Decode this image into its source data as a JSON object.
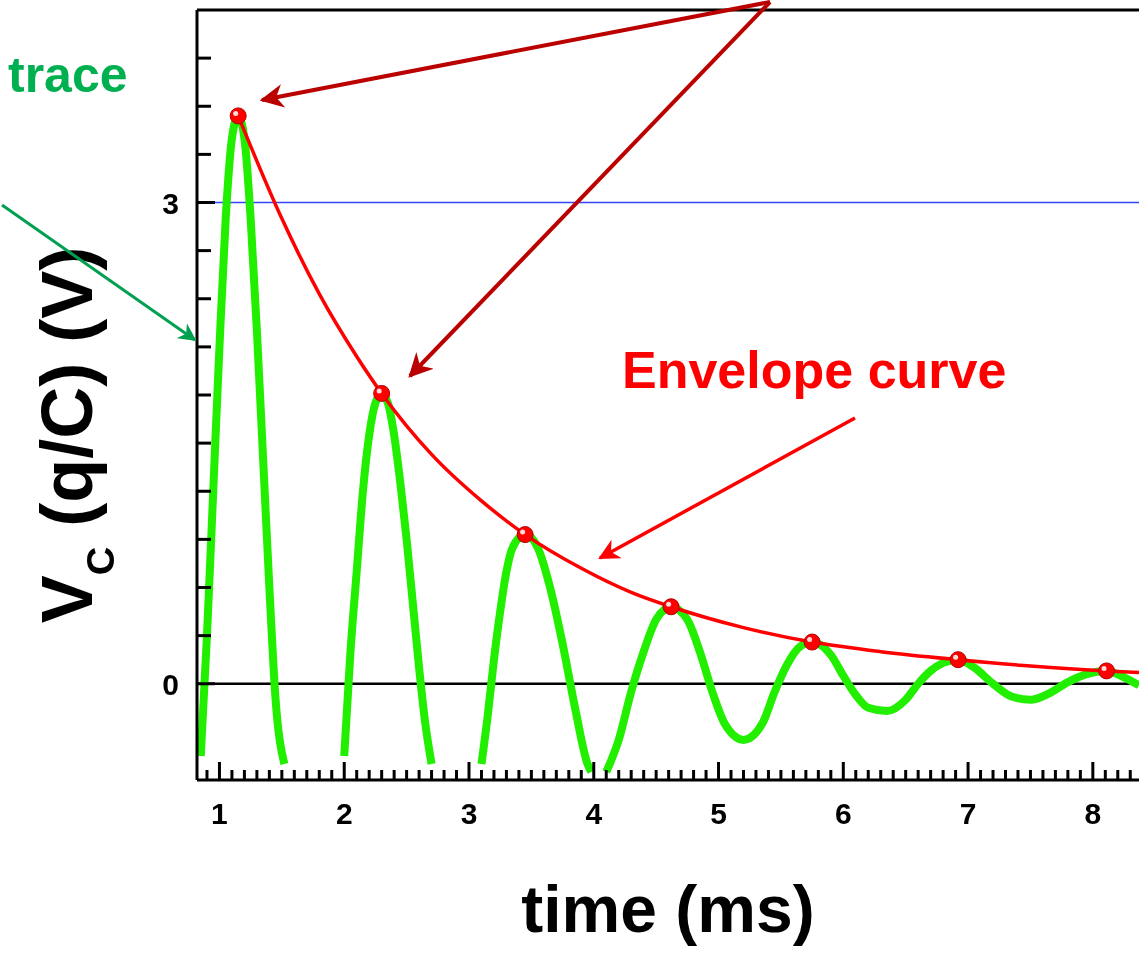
{
  "chart_data": {
    "type": "line",
    "xlabel": "time (ms)",
    "ylabel": "V$_{C}$ (q/C) (V)",
    "xlim": [
      0.82,
      8.37
    ],
    "ylim": [
      -0.6,
      4.2
    ],
    "xticks": [
      {
        "value": 0.9,
        "label": null
      },
      1,
      {
        "value": 1.1,
        "label": null
      },
      {
        "value": 1.2,
        "label": null
      },
      {
        "value": 1.3,
        "label": null
      },
      {
        "value": 1.4,
        "label": null
      },
      {
        "value": 1.5,
        "label": null
      },
      {
        "value": 1.6,
        "label": null
      },
      {
        "value": 1.7,
        "label": null
      },
      {
        "value": 1.8,
        "label": null
      },
      {
        "value": 1.9,
        "label": null
      },
      2,
      {
        "value": 2.1,
        "label": null
      },
      {
        "value": 2.2,
        "label": null
      },
      {
        "value": 2.3,
        "label": null
      },
      {
        "value": 2.4,
        "label": null
      },
      {
        "value": 2.5,
        "label": null
      },
      {
        "value": 2.6,
        "label": null
      },
      {
        "value": 2.7,
        "label": null
      },
      {
        "value": 2.8,
        "label": null
      },
      {
        "value": 2.9,
        "label": null
      },
      3,
      {
        "value": 3.1,
        "label": null
      },
      {
        "value": 3.2,
        "label": null
      },
      {
        "value": 3.3,
        "label": null
      },
      {
        "value": 3.4,
        "label": null
      },
      {
        "value": 3.5,
        "label": null
      },
      {
        "value": 3.6,
        "label": null
      },
      {
        "value": 3.7,
        "label": null
      },
      {
        "value": 3.8,
        "label": null
      },
      {
        "value": 3.9,
        "label": null
      },
      4,
      {
        "value": 4.1,
        "label": null
      },
      {
        "value": 4.2,
        "label": null
      },
      {
        "value": 4.3,
        "label": null
      },
      {
        "value": 4.4,
        "label": null
      },
      {
        "value": 4.5,
        "label": null
      },
      {
        "value": 4.6,
        "label": null
      },
      {
        "value": 4.7,
        "label": null
      },
      {
        "value": 4.8,
        "label": null
      },
      {
        "value": 4.9,
        "label": null
      },
      5,
      {
        "value": 5.1,
        "label": null
      },
      {
        "value": 5.2,
        "label": null
      },
      {
        "value": 5.3,
        "label": null
      },
      {
        "value": 5.4,
        "label": null
      },
      {
        "value": 5.5,
        "label": null
      },
      {
        "value": 5.6,
        "label": null
      },
      {
        "value": 5.7,
        "label": null
      },
      {
        "value": 5.8,
        "label": null
      },
      {
        "value": 5.9,
        "label": null
      },
      6,
      {
        "value": 6.1,
        "label": null
      },
      {
        "value": 6.2,
        "label": null
      },
      {
        "value": 6.3,
        "label": null
      },
      {
        "value": 6.4,
        "label": null
      },
      {
        "value": 6.5,
        "label": null
      },
      {
        "value": 6.6,
        "label": null
      },
      {
        "value": 6.7,
        "label": null
      },
      {
        "value": 6.8,
        "label": null
      },
      {
        "value": 6.9,
        "label": null
      },
      7,
      {
        "value": 7.1,
        "label": null
      },
      {
        "value": 7.2,
        "label": null
      },
      {
        "value": 7.3,
        "label": null
      },
      {
        "value": 7.4,
        "label": null
      },
      {
        "value": 7.5,
        "label": null
      },
      {
        "value": 7.6,
        "label": null
      },
      {
        "value": 7.7,
        "label": null
      },
      {
        "value": 7.8,
        "label": null
      },
      {
        "value": 7.9,
        "label": null
      },
      8,
      {
        "value": 8.1,
        "label": null
      },
      {
        "value": 8.2,
        "label": null
      },
      {
        "value": 8.3,
        "label": null
      }
    ],
    "yticks": [
      0,
      {
        "value": 0.3,
        "label": null
      },
      {
        "value": 0.6,
        "label": null
      },
      {
        "value": 0.9,
        "label": null
      },
      {
        "value": 1.2,
        "label": null
      },
      {
        "value": 1.5,
        "label": null
      },
      {
        "value": 1.8,
        "label": null
      },
      {
        "value": 2.1,
        "label": null
      },
      {
        "value": 2.4,
        "label": null
      },
      {
        "value": 2.7,
        "label": null
      },
      3,
      {
        "value": 3.3,
        "label": null
      },
      {
        "value": 3.6,
        "label": null
      },
      {
        "value": 3.9,
        "label": null
      }
    ],
    "series": [
      {
        "type": "line",
        "color": "#22ee00",
        "x": [
          0.85,
          0.9,
          0.95,
          1.0,
          1.05,
          1.1,
          1.15,
          1.2,
          1.25,
          1.3,
          1.35,
          1.4,
          1.45,
          1.52,
          1.75,
          2.0,
          2.05,
          2.1,
          2.15,
          2.2,
          2.25,
          2.3,
          2.35,
          2.4,
          2.45,
          2.5,
          2.55,
          2.6,
          2.65,
          2.7,
          2.9,
          3.1,
          3.15,
          3.2,
          3.25,
          3.3,
          3.35,
          3.45,
          3.55,
          3.65,
          3.75,
          3.85,
          3.95,
          3.98,
          4.04,
          4.1,
          4.2,
          4.3,
          4.4,
          4.5,
          4.62,
          4.75,
          4.85,
          4.95,
          5.05,
          5.2,
          5.35,
          5.45,
          5.55,
          5.65,
          5.75,
          5.9,
          6.0,
          6.1,
          6.2,
          6.35,
          6.5,
          6.6,
          6.7,
          6.8,
          6.92,
          7.05,
          7.2,
          7.35,
          7.5,
          7.65,
          7.8,
          7.95,
          8.11,
          8.25,
          8.37
        ],
        "values": [
          -0.45,
          0.3,
          1.2,
          2.1,
          2.9,
          3.4,
          3.54,
          3.4,
          2.9,
          2.2,
          1.4,
          0.6,
          -0.1,
          -0.5,
          null,
          -0.45,
          0.2,
          0.7,
          1.2,
          1.55,
          1.75,
          1.81,
          1.75,
          1.55,
          1.25,
          0.9,
          0.5,
          0.1,
          -0.25,
          -0.5,
          null,
          -0.5,
          -0.2,
          0.15,
          0.45,
          0.7,
          0.85,
          0.93,
          0.85,
          0.6,
          0.25,
          -0.15,
          -0.5,
          -0.55,
          null,
          -0.55,
          -0.35,
          -0.05,
          0.2,
          0.4,
          0.48,
          0.4,
          0.2,
          -0.05,
          -0.25,
          -0.35,
          -0.25,
          -0.05,
          0.12,
          0.23,
          0.26,
          0.18,
          0.05,
          -0.07,
          -0.15,
          -0.17,
          -0.1,
          0.0,
          0.08,
          0.13,
          0.15,
          0.1,
          0.0,
          -0.08,
          -0.1,
          -0.06,
          0.01,
          0.06,
          0.08,
          0.04,
          -0.01
        ]
      },
      {
        "type": "line",
        "color": "#ff0000",
        "x": [
          1.15,
          1.5,
          1.8,
          2.1,
          2.3,
          2.7,
          3.1,
          3.45,
          3.9,
          4.3,
          4.62,
          5.2,
          5.75,
          6.3,
          6.92,
          7.5,
          8.11,
          8.37
        ],
        "values": [
          3.54,
          2.9,
          2.43,
          2.04,
          1.81,
          1.43,
          1.14,
          0.93,
          0.72,
          0.57,
          0.48,
          0.35,
          0.26,
          0.2,
          0.15,
          0.11,
          0.08,
          0.07
        ]
      },
      {
        "type": "scatter",
        "color": "#ff0000",
        "marker": "circle",
        "x": [
          1.15,
          2.3,
          3.45,
          4.62,
          5.75,
          6.92,
          8.11
        ],
        "values": [
          3.54,
          1.81,
          0.93,
          0.48,
          0.26,
          0.15,
          0.08
        ]
      }
    ],
    "ref_lines": [
      {
        "axis": "y",
        "value": 3,
        "color": "#3344ff"
      },
      {
        "axis": "y",
        "value": 0,
        "color": "#000000"
      }
    ],
    "annotations": [
      "trace",
      "Envelope curve"
    ]
  }
}
